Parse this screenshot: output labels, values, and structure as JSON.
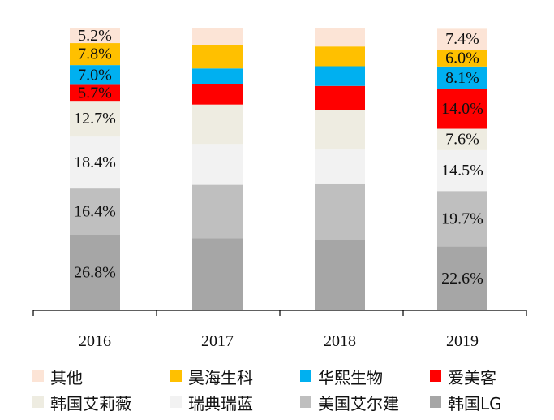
{
  "chart_data": {
    "type": "bar",
    "stacked": true,
    "normalized_percent": true,
    "categories": [
      "2016",
      "2017",
      "2018",
      "2019"
    ],
    "ylim": [
      0,
      100
    ],
    "grid": false,
    "legend_position": "bottom",
    "series": [
      {
        "name": "韩国LG",
        "color": "#A6A6A6",
        "values": [
          26.8,
          25.5,
          25.0,
          22.6
        ],
        "labels": [
          "26.8%",
          "",
          "",
          "22.6%"
        ]
      },
      {
        "name": "美国艾尔建",
        "color": "#BFBFBF",
        "values": [
          16.4,
          19.0,
          20.0,
          19.7
        ],
        "labels": [
          "16.4%",
          "",
          "",
          "19.7%"
        ]
      },
      {
        "name": "瑞典瑞蓝",
        "color": "#F2F2F2",
        "values": [
          18.4,
          14.5,
          12.0,
          14.5
        ],
        "labels": [
          "18.4%",
          "",
          "",
          "14.5%"
        ]
      },
      {
        "name": "韩国艾莉薇",
        "color": "#EEECE1",
        "values": [
          12.7,
          14.0,
          14.0,
          7.6
        ],
        "labels": [
          "12.7%",
          "",
          "",
          "7.6%"
        ]
      },
      {
        "name": "爱美客",
        "color": "#FF0000",
        "values": [
          5.7,
          7.3,
          8.6,
          14.0
        ],
        "labels": [
          "5.7%",
          "",
          "",
          "14.0%"
        ]
      },
      {
        "name": "华熙生物",
        "color": "#00B0F0",
        "values": [
          7.0,
          5.5,
          7.0,
          8.1
        ],
        "labels": [
          "7.0%",
          "",
          "",
          "8.1%"
        ]
      },
      {
        "name": "昊海生科",
        "color": "#FFC000",
        "values": [
          7.8,
          8.2,
          7.0,
          6.0
        ],
        "labels": [
          "7.8%",
          "",
          "",
          "6.0%"
        ]
      },
      {
        "name": "其他",
        "color": "#FCE4D6",
        "values": [
          5.2,
          6.0,
          6.4,
          7.4
        ],
        "labels": [
          "5.2%",
          "",
          "",
          "7.4%"
        ]
      }
    ],
    "legend_order": [
      "其他",
      "昊海生科",
      "华熙生物",
      "爱美客",
      "韩国艾莉薇",
      "瑞典瑞蓝",
      "美国艾尔建",
      "韩国LG"
    ]
  }
}
